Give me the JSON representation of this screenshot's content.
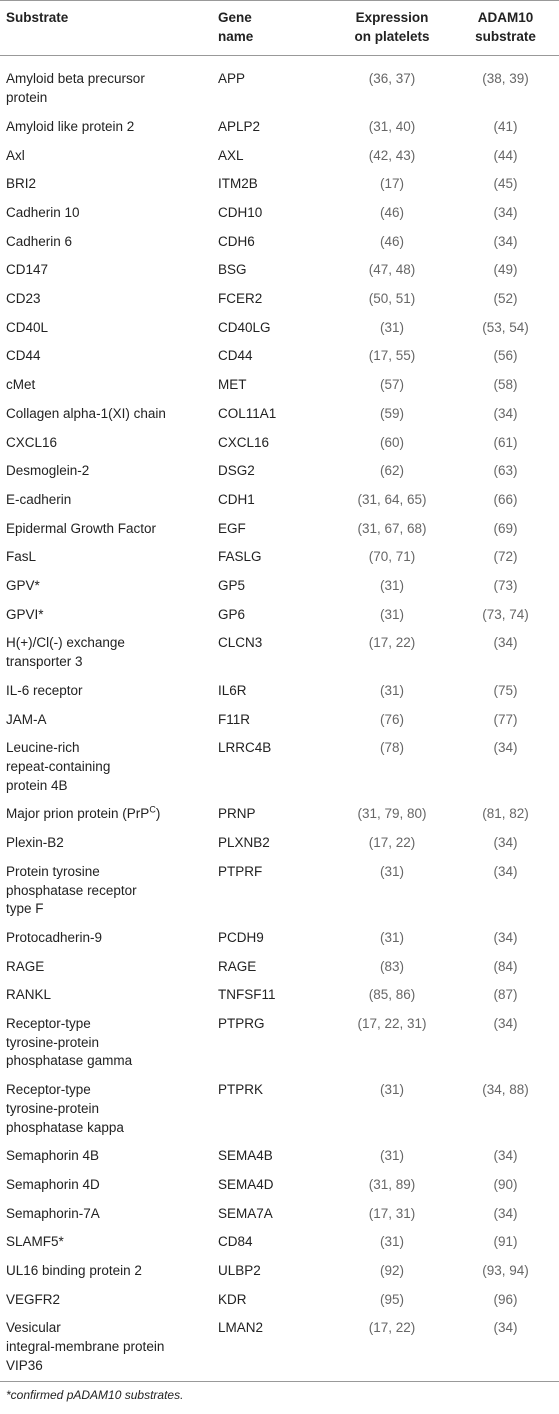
{
  "table": {
    "header": [
      [
        "Substrate"
      ],
      [
        "Gene",
        "name"
      ],
      [
        "Expression",
        "on platelets"
      ],
      [
        "ADAM10",
        "substrate"
      ]
    ],
    "rows": [
      [
        [
          "Amyloid beta precursor",
          "protein"
        ],
        "APP",
        "(36, 37)",
        "(38, 39)"
      ],
      [
        "Amyloid like protein 2",
        "APLP2",
        "(31, 40)",
        "(41)"
      ],
      [
        "Axl",
        "AXL",
        "(42, 43)",
        "(44)"
      ],
      [
        "BRI2",
        "ITM2B",
        "(17)",
        "(45)"
      ],
      [
        "Cadherin 10",
        "CDH10",
        "(46)",
        "(34)"
      ],
      [
        "Cadherin 6",
        "CDH6",
        "(46)",
        "(34)"
      ],
      [
        "CD147",
        "BSG",
        "(47, 48)",
        "(49)"
      ],
      [
        "CD23",
        "FCER2",
        "(50, 51)",
        "(52)"
      ],
      [
        "CD40L",
        "CD40LG",
        "(31)",
        "(53, 54)"
      ],
      [
        "CD44",
        "CD44",
        "(17, 55)",
        "(56)"
      ],
      [
        "cMet",
        "MET",
        "(57)",
        "(58)"
      ],
      [
        "Collagen alpha-1(XI) chain",
        "COL11A1",
        "(59)",
        "(34)"
      ],
      [
        "CXCL16",
        "CXCL16",
        "(60)",
        "(61)"
      ],
      [
        "Desmoglein-2",
        "DSG2",
        "(62)",
        "(63)"
      ],
      [
        "E-cadherin",
        "CDH1",
        "(31, 64, 65)",
        "(66)"
      ],
      [
        "Epidermal Growth Factor",
        "EGF",
        "(31, 67, 68)",
        "(69)"
      ],
      [
        "FasL",
        "FASLG",
        "(70, 71)",
        "(72)"
      ],
      [
        "GPV*",
        "GP5",
        "(31)",
        "(73)"
      ],
      [
        "GPVI*",
        "GP6",
        "(31)",
        "(73, 74)"
      ],
      [
        [
          "H(+)/Cl(-) exchange",
          "transporter 3"
        ],
        "CLCN3",
        "(17, 22)",
        "(34)"
      ],
      [
        "IL-6 receptor",
        "IL6R",
        "(31)",
        "(75)"
      ],
      [
        "JAM-A",
        "F11R",
        "(76)",
        "(77)"
      ],
      [
        [
          "Leucine-rich",
          "repeat-containing",
          "protein 4B"
        ],
        "LRRC4B",
        "(78)",
        "(34)"
      ],
      [
        {
          "text": "Major prion protein (PrP",
          "sup": "C",
          "tail": ")"
        },
        "PRNP",
        "(31, 79, 80)",
        "(81, 82)"
      ],
      [
        "Plexin-B2",
        "PLXNB2",
        "(17, 22)",
        "(34)"
      ],
      [
        [
          "Protein tyrosine",
          "phosphatase receptor",
          "type F"
        ],
        "PTPRF",
        "(31)",
        "(34)"
      ],
      [
        "Protocadherin-9",
        "PCDH9",
        "(31)",
        "(34)"
      ],
      [
        "RAGE",
        "RAGE",
        "(83)",
        "(84)"
      ],
      [
        "RANKL",
        "TNFSF11",
        "(85, 86)",
        "(87)"
      ],
      [
        [
          "Receptor-type",
          "tyrosine-protein",
          "phosphatase gamma"
        ],
        "PTPRG",
        "(17, 22, 31)",
        "(34)"
      ],
      [
        [
          "Receptor-type",
          "tyrosine-protein",
          "phosphatase kappa"
        ],
        "PTPRK",
        "(31)",
        "(34, 88)"
      ],
      [
        "Semaphorin 4B",
        "SEMA4B",
        "(31)",
        "(34)"
      ],
      [
        "Semaphorin 4D",
        "SEMA4D",
        "(31, 89)",
        "(90)"
      ],
      [
        "Semaphorin-7A",
        "SEMA7A",
        "(17, 31)",
        "(34)"
      ],
      [
        "SLAMF5*",
        "CD84",
        "(31)",
        "(91)"
      ],
      [
        "UL16 binding protein 2",
        "ULBP2",
        "(92)",
        "(93, 94)"
      ],
      [
        "VEGFR2",
        "KDR",
        "(95)",
        "(96)"
      ],
      [
        [
          "Vesicular",
          "integral-membrane protein",
          "VIP36"
        ],
        "LMAN2",
        "(17, 22)",
        "(34)"
      ]
    ],
    "footnote": "*confirmed pADAM10 substrates."
  }
}
